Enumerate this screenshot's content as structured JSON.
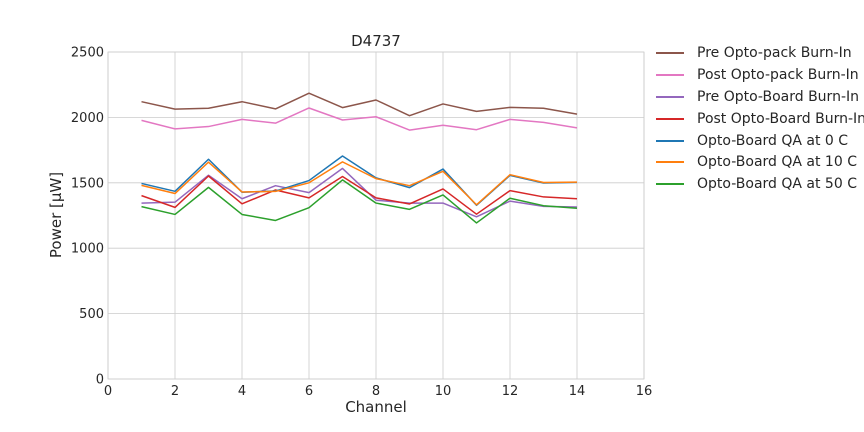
{
  "chart_data": {
    "type": "line",
    "title": "D4737",
    "xlabel": "Channel",
    "ylabel": "Power [μW]",
    "xlim": [
      0,
      16
    ],
    "ylim": [
      0,
      2500
    ],
    "xticks": [
      "0",
      "2",
      "4",
      "6",
      "8",
      "10",
      "12",
      "14",
      "16"
    ],
    "yticks": [
      "0",
      "500",
      "1000",
      "1500",
      "2000",
      "2500"
    ],
    "grid": true,
    "legend_position": "outside-right",
    "x": [
      1,
      2,
      3,
      4,
      5,
      6,
      7,
      8,
      9,
      10,
      11,
      12,
      13,
      14
    ],
    "series": [
      {
        "name": "Pre Opto-pack Burn-In",
        "color": "#8c564b",
        "values": [
          2120,
          2063,
          2070,
          2120,
          2065,
          2185,
          2075,
          2133,
          2013,
          2103,
          2046,
          2077,
          2070,
          2025
        ]
      },
      {
        "name": "Post Opto-pack Burn-In",
        "color": "#e377c2",
        "values": [
          1977,
          1912,
          1930,
          1985,
          1956,
          2072,
          1980,
          2005,
          1903,
          1940,
          1906,
          1985,
          1962,
          1920
        ]
      },
      {
        "name": "Pre Opto-Board Burn-In",
        "color": "#9467bd",
        "values": [
          1345,
          1352,
          1558,
          1378,
          1478,
          1425,
          1610,
          1367,
          1345,
          1345,
          1240,
          1360,
          1320,
          1315
        ]
      },
      {
        "name": "Post Opto-Board Burn-In",
        "color": "#d62728",
        "values": [
          1402,
          1312,
          1552,
          1339,
          1445,
          1385,
          1548,
          1385,
          1338,
          1453,
          1260,
          1440,
          1392,
          1378
        ]
      },
      {
        "name": "Opto-Board QA at 0 C",
        "color": "#1f77b4",
        "values": [
          1495,
          1435,
          1680,
          1428,
          1437,
          1517,
          1705,
          1538,
          1463,
          1605,
          1328,
          1557,
          1498,
          1503
        ]
      },
      {
        "name": "Opto-Board QA at 10 C",
        "color": "#ff7f0e",
        "values": [
          1480,
          1418,
          1658,
          1430,
          1434,
          1500,
          1660,
          1532,
          1478,
          1588,
          1332,
          1562,
          1502,
          1505
        ]
      },
      {
        "name": "Opto-Board QA at 50 C",
        "color": "#2ca02c",
        "values": [
          1318,
          1258,
          1465,
          1258,
          1212,
          1310,
          1522,
          1345,
          1297,
          1407,
          1193,
          1382,
          1325,
          1305
        ]
      }
    ]
  }
}
